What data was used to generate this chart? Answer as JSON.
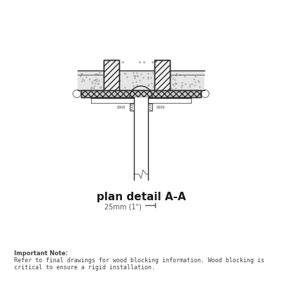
{
  "bg_color": "#ffffff",
  "line_color": "#2a2a2a",
  "gray_medium": "#888888",
  "gray_light": "#bbbbbb",
  "gray_dot": "#aaaaaa",
  "title": "plan detail A-A",
  "scale_text": "25mm (1\")",
  "note_bold": "Important Note:",
  "note_text": "Refer to final drawings for wood blocking information. Wood blocking is critical to ensure a rigid installation.",
  "title_fontsize": 11,
  "scale_fontsize": 7,
  "note_bold_fontsize": 6,
  "note_fontsize": 6
}
